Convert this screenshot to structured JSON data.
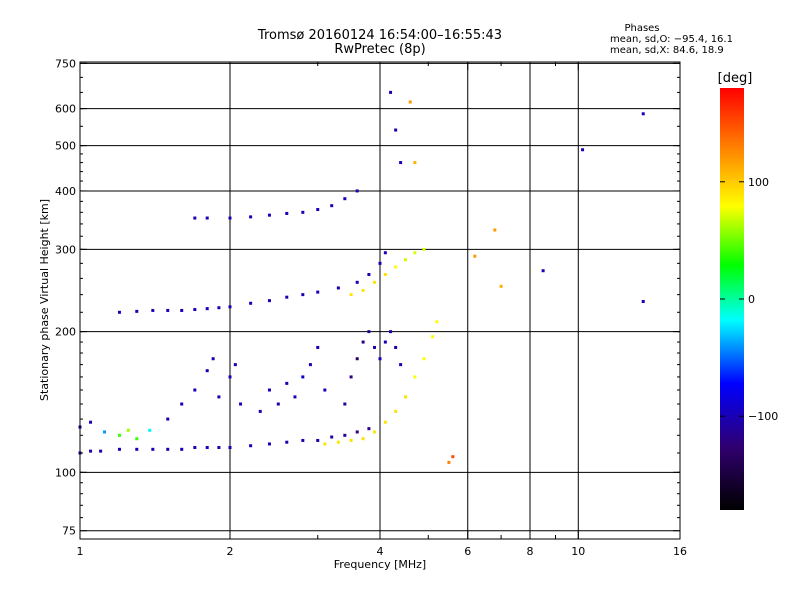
{
  "chart_data": {
    "type": "scatter",
    "title": "Tromsø 20160124 16:54:00–16:55:43",
    "subtitle": "RwPretec (8p)",
    "xlabel": "Frequency [MHz]",
    "ylabel": "Stationary phase Virtual Height [km]",
    "x_scale": "log",
    "y_scale": "log",
    "xlim": [
      1,
      16
    ],
    "ylim": [
      72,
      755
    ],
    "x_ticks": [
      1,
      2,
      4,
      6,
      8,
      10,
      16
    ],
    "x_minor_ticks": [
      3,
      5,
      7,
      9
    ],
    "y_ticks": [
      75,
      100,
      200,
      300,
      400,
      500,
      600,
      750
    ],
    "grid": true,
    "info_box": {
      "title": "Phases",
      "line1": "mean, sd,O: −95.4, 16.1",
      "line2": "mean, sd,X:  84.6, 18.9"
    },
    "colorbar": {
      "label": "[deg]",
      "range": [
        -180,
        180
      ],
      "ticks": [
        100,
        0,
        -100
      ],
      "tick_labels": [
        "100",
        "0",
        "−100"
      ]
    },
    "series": [
      {
        "values": [
          [
            1.0,
            110,
            -100
          ],
          [
            1.05,
            111,
            -100
          ],
          [
            1.1,
            111,
            -100
          ],
          [
            1.2,
            112,
            -100
          ],
          [
            1.3,
            112,
            -100
          ],
          [
            1.4,
            112,
            -100
          ],
          [
            1.5,
            112,
            -100
          ],
          [
            1.6,
            112,
            -100
          ],
          [
            1.7,
            113,
            -100
          ],
          [
            1.8,
            113,
            -100
          ],
          [
            1.9,
            113,
            -100
          ],
          [
            2.0,
            113,
            -100
          ],
          [
            2.2,
            114,
            -100
          ],
          [
            2.4,
            115,
            -100
          ],
          [
            2.6,
            116,
            -100
          ],
          [
            2.8,
            117,
            -100
          ],
          [
            3.0,
            117,
            -100
          ],
          [
            3.2,
            119,
            -110
          ],
          [
            3.4,
            120,
            -110
          ],
          [
            3.6,
            122,
            -120
          ],
          [
            3.8,
            124,
            -120
          ],
          [
            1.0,
            125,
            -100
          ],
          [
            1.05,
            128,
            -100
          ],
          [
            1.12,
            122,
            -40
          ],
          [
            1.2,
            120,
            40
          ],
          [
            1.25,
            123,
            60
          ],
          [
            1.3,
            118,
            40
          ],
          [
            1.38,
            123,
            -20
          ],
          [
            1.5,
            130,
            -100
          ],
          [
            1.6,
            140,
            -100
          ],
          [
            1.7,
            150,
            -100
          ],
          [
            1.8,
            165,
            -100
          ],
          [
            1.85,
            175,
            -100
          ],
          [
            1.9,
            145,
            -100
          ],
          [
            2.0,
            160,
            -100
          ],
          [
            2.05,
            170,
            -100
          ],
          [
            2.1,
            140,
            -100
          ],
          [
            2.3,
            135,
            -100
          ],
          [
            2.4,
            150,
            -100
          ],
          [
            2.5,
            140,
            -100
          ],
          [
            2.6,
            155,
            -100
          ],
          [
            2.7,
            145,
            -100
          ],
          [
            2.8,
            160,
            -90
          ],
          [
            2.9,
            170,
            -100
          ],
          [
            3.0,
            185,
            -100
          ],
          [
            3.1,
            150,
            -100
          ],
          [
            3.4,
            140,
            -110
          ],
          [
            3.5,
            160,
            -120
          ],
          [
            3.6,
            175,
            -130
          ],
          [
            3.7,
            190,
            -120
          ],
          [
            3.8,
            200,
            -110
          ],
          [
            3.9,
            185,
            -100
          ],
          [
            4.0,
            175,
            -100
          ],
          [
            4.1,
            190,
            -100
          ],
          [
            4.2,
            200,
            -100
          ],
          [
            4.3,
            185,
            -100
          ],
          [
            4.4,
            170,
            -100
          ]
        ]
      },
      {
        "values": [
          [
            1.2,
            220,
            -100
          ],
          [
            1.3,
            221,
            -100
          ],
          [
            1.4,
            222,
            -100
          ],
          [
            1.5,
            222,
            -100
          ],
          [
            1.6,
            222,
            -100
          ],
          [
            1.7,
            223,
            -100
          ],
          [
            1.8,
            224,
            -100
          ],
          [
            1.9,
            225,
            -100
          ],
          [
            2.0,
            226,
            -100
          ],
          [
            2.2,
            230,
            -100
          ],
          [
            2.4,
            233,
            -100
          ],
          [
            2.6,
            237,
            -100
          ],
          [
            2.8,
            240,
            -100
          ],
          [
            3.0,
            243,
            -100
          ],
          [
            3.3,
            248,
            -100
          ],
          [
            3.6,
            255,
            -100
          ],
          [
            3.8,
            265,
            -100
          ],
          [
            4.0,
            280,
            -100
          ],
          [
            4.1,
            295,
            -100
          ]
        ]
      },
      {
        "values": [
          [
            1.7,
            350,
            -100
          ],
          [
            1.8,
            350,
            -100
          ],
          [
            2.0,
            350,
            -100
          ],
          [
            2.2,
            352,
            -100
          ],
          [
            2.4,
            355,
            -100
          ],
          [
            2.6,
            358,
            -100
          ],
          [
            2.8,
            360,
            -100
          ],
          [
            3.0,
            365,
            -100
          ],
          [
            3.2,
            372,
            -100
          ],
          [
            3.4,
            385,
            -100
          ],
          [
            3.6,
            400,
            -100
          ]
        ]
      },
      {
        "values": [
          [
            3.1,
            115,
            90
          ],
          [
            3.3,
            116,
            90
          ],
          [
            3.5,
            117,
            90
          ],
          [
            3.7,
            118,
            90
          ],
          [
            3.9,
            122,
            90
          ],
          [
            4.1,
            128,
            90
          ],
          [
            4.3,
            135,
            90
          ],
          [
            4.5,
            145,
            90
          ],
          [
            4.7,
            160,
            80
          ],
          [
            4.9,
            175,
            80
          ],
          [
            5.1,
            195,
            80
          ],
          [
            5.2,
            210,
            80
          ]
        ]
      },
      {
        "values": [
          [
            3.5,
            240,
            90
          ],
          [
            3.7,
            245,
            90
          ],
          [
            3.9,
            255,
            90
          ],
          [
            4.1,
            265,
            90
          ],
          [
            4.3,
            275,
            80
          ],
          [
            4.5,
            285,
            70
          ],
          [
            4.7,
            295,
            70
          ],
          [
            4.9,
            300,
            70
          ]
        ]
      },
      {
        "values": [
          [
            4.2,
            650,
            -100
          ],
          [
            4.3,
            540,
            -100
          ],
          [
            4.4,
            460,
            -100
          ],
          [
            4.6,
            620,
            120
          ],
          [
            4.7,
            460,
            110
          ],
          [
            5.5,
            105,
            130
          ],
          [
            5.6,
            108,
            150
          ],
          [
            6.2,
            290,
            120
          ],
          [
            6.8,
            330,
            120
          ],
          [
            7.0,
            250,
            110
          ],
          [
            8.5,
            270,
            -100
          ],
          [
            10.2,
            490,
            -100
          ],
          [
            13.5,
            585,
            -100
          ],
          [
            13.5,
            232,
            -100
          ]
        ]
      }
    ]
  }
}
